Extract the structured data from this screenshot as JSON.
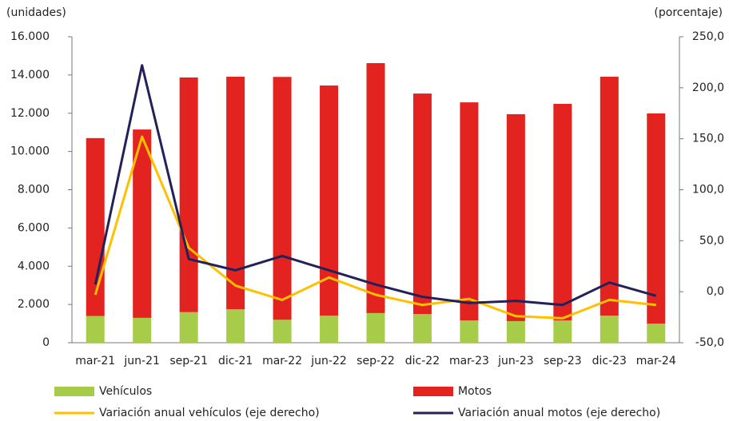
{
  "chart_data": {
    "type": "bar-line",
    "y_label": "(unidades)",
    "y2_label": "(porcentaje)",
    "categories": [
      "mar-21",
      "jun-21",
      "sep-21",
      "dic-21",
      "mar-22",
      "jun-22",
      "sep-22",
      "dic-22",
      "mar-23",
      "jun-23",
      "sep-23",
      "dic-23",
      "mar-24"
    ],
    "series": [
      {
        "name": "Vehículos",
        "color": "#a6cc4a",
        "kind": "bar",
        "values": [
          1400,
          1300,
          1600,
          1750,
          1200,
          1420,
          1550,
          1500,
          1170,
          1130,
          1170,
          1420,
          1000
        ]
      },
      {
        "name": "Motos",
        "color": "#e3231f",
        "kind": "bar",
        "values": [
          9300,
          9850,
          12270,
          12160,
          12700,
          12030,
          13070,
          11530,
          11400,
          10820,
          11320,
          12490,
          10990
        ]
      },
      {
        "name": "Variación anual vehículos (eje derecho)",
        "color": "#ffc000",
        "kind": "line",
        "axis": "y2",
        "values": [
          -3,
          152,
          43,
          6,
          -8,
          14,
          -3,
          -13,
          -7,
          -24,
          -26,
          -8,
          -13
        ]
      },
      {
        "name": "Variación anual motos (eje derecho)",
        "color": "#23215a",
        "kind": "line",
        "axis": "y2",
        "values": [
          7,
          222,
          32,
          21,
          35,
          21,
          7,
          -5,
          -11,
          -9,
          -13,
          9,
          -4
        ]
      }
    ],
    "ylim": [
      0,
      16000
    ],
    "yticks": [
      0,
      {
        "value": 2000,
        "label": "2.000"
      },
      {
        "value": 4000,
        "label": "4.000"
      },
      {
        "value": 6000,
        "label": "6.000"
      },
      {
        "value": 8000,
        "label": "8.000"
      },
      {
        "value": 10000,
        "label": "10.000"
      },
      {
        "value": 12000,
        "label": "12.000"
      },
      {
        "value": 14000,
        "label": "14.000"
      },
      {
        "value": 16000,
        "label": "16.000"
      }
    ],
    "y2lim": [
      -50,
      250
    ],
    "y2ticks": [
      {
        "value": -50,
        "label": "-50,0"
      },
      {
        "value": 0,
        "label": "0,0"
      },
      {
        "value": 50,
        "label": "50,0"
      },
      {
        "value": 100,
        "label": "100,0"
      },
      {
        "value": 150,
        "label": "150,0"
      },
      {
        "value": 200,
        "label": "200,0"
      },
      {
        "value": 250,
        "label": "250,0"
      }
    ],
    "stacked": true,
    "grid": false
  }
}
